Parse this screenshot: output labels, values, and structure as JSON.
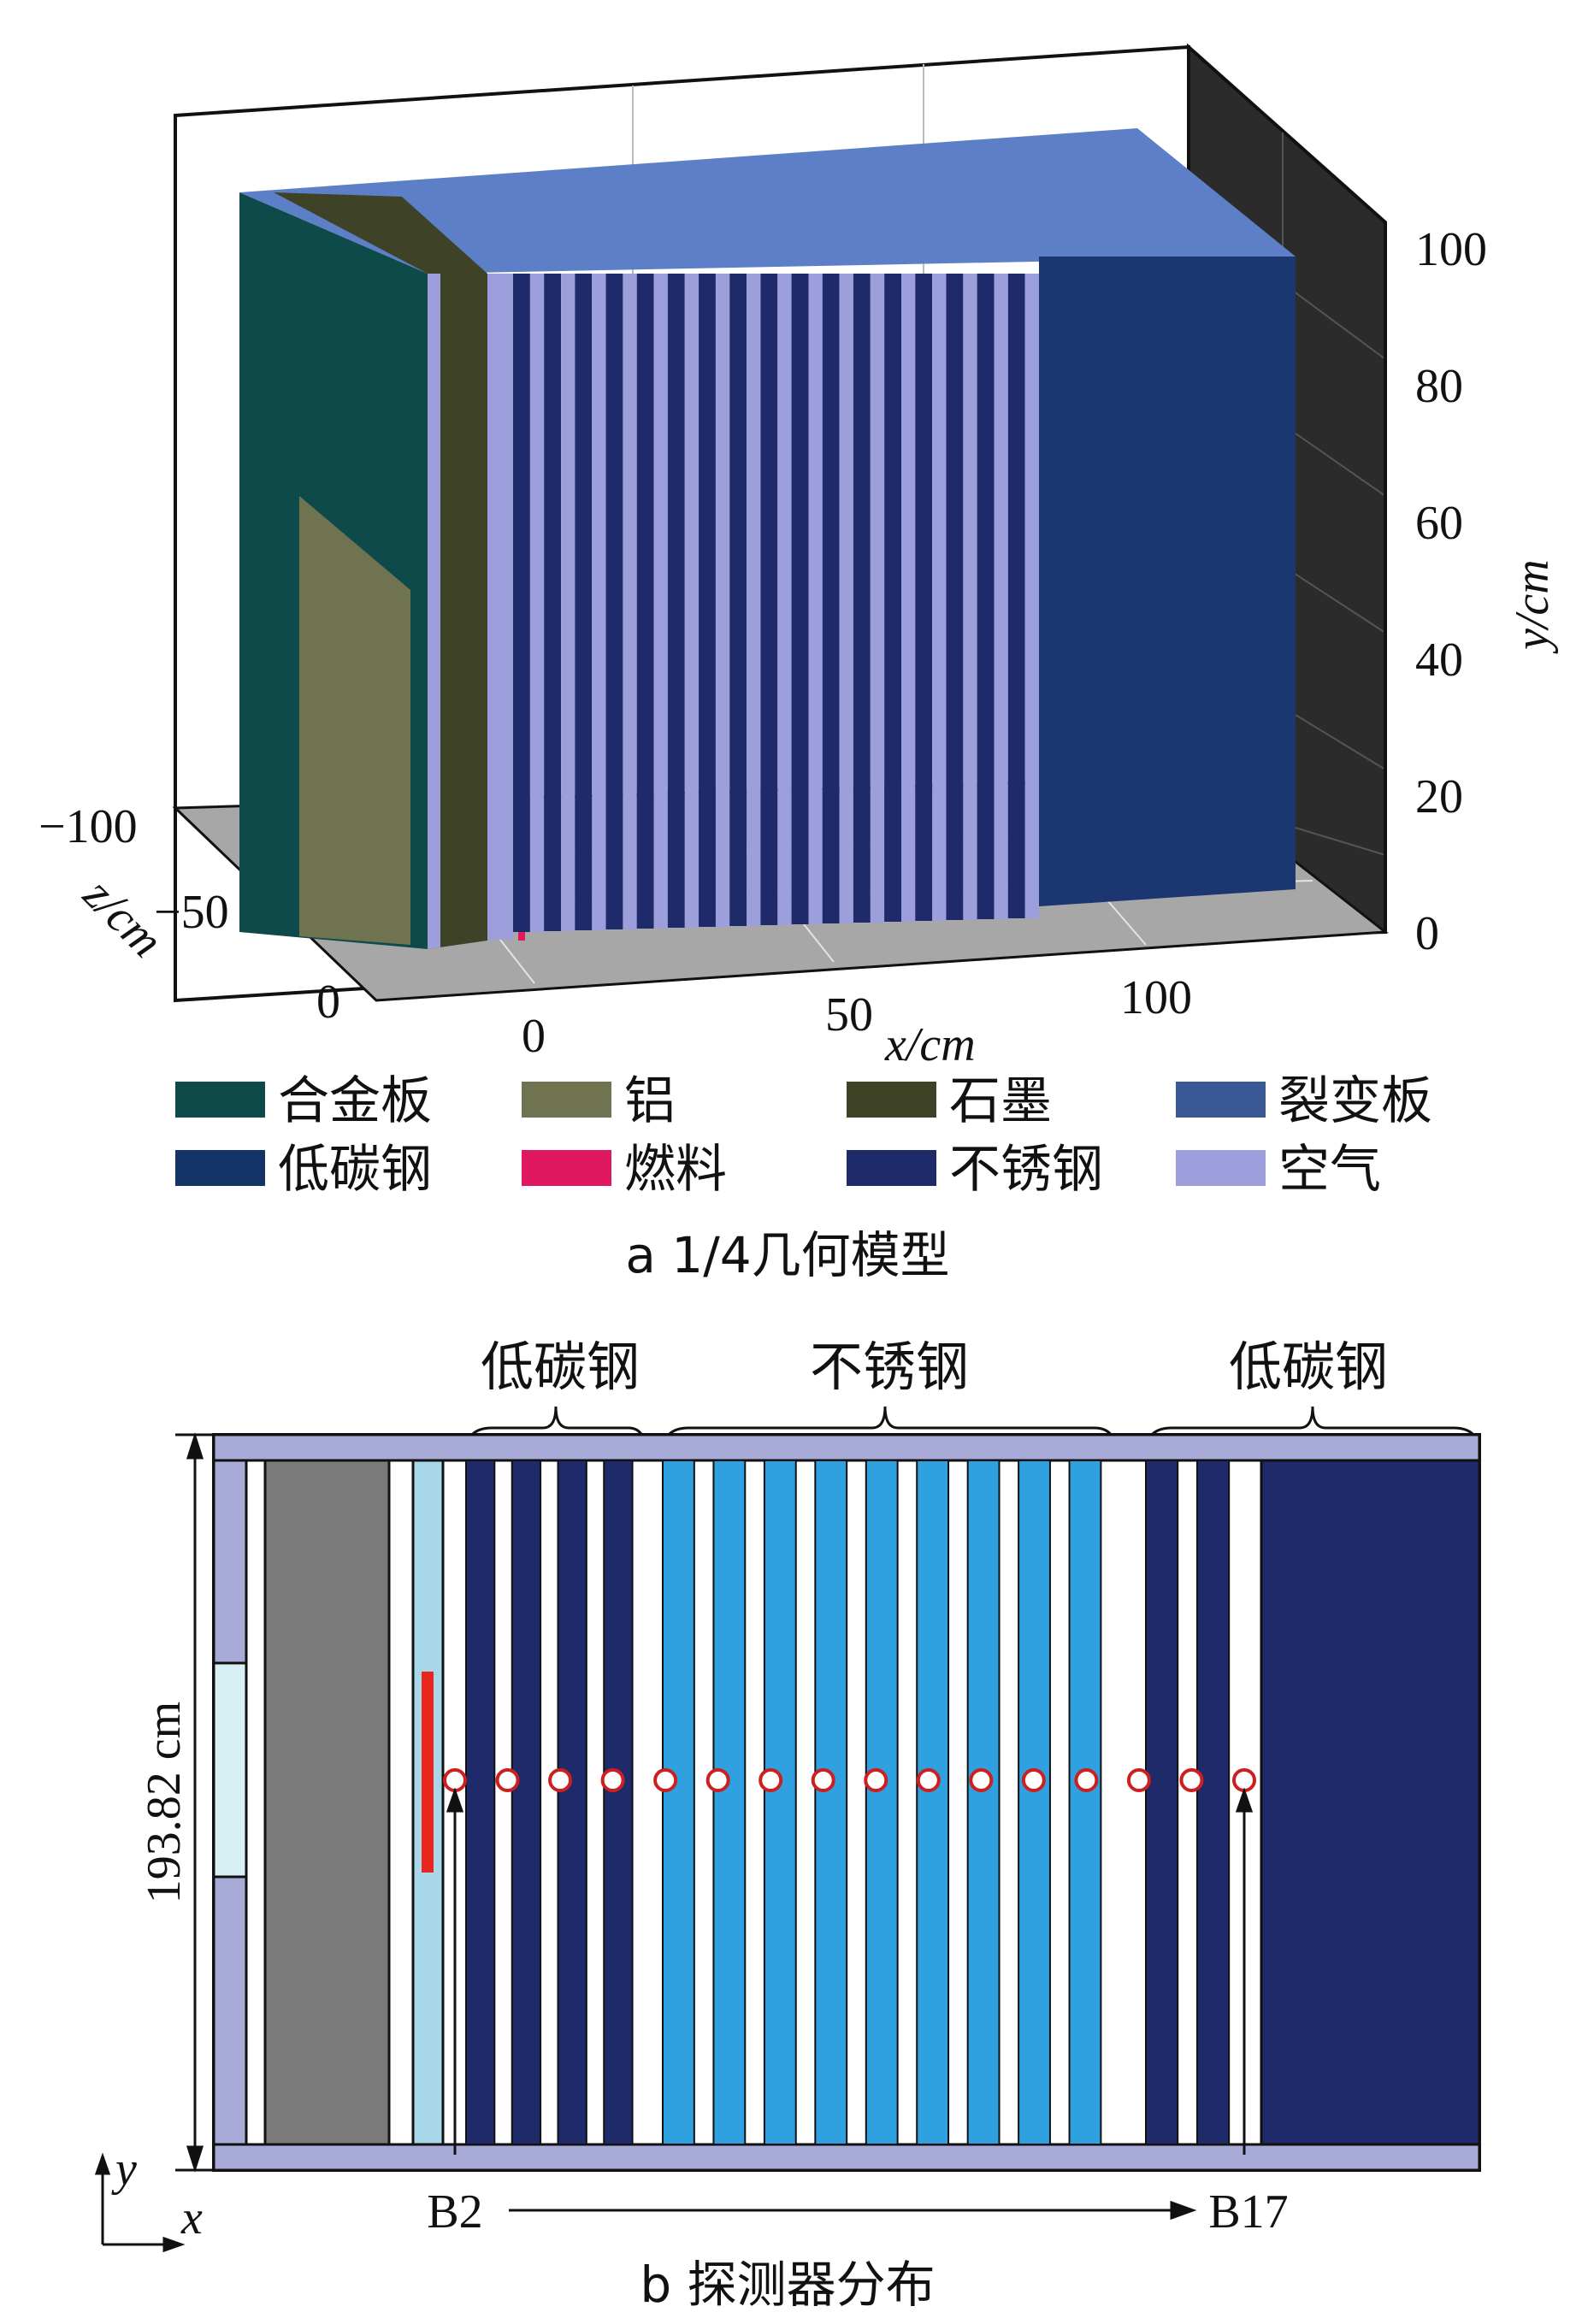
{
  "panel_a": {
    "caption": "a 1/4几何模型",
    "axes": {
      "x_label": "x/cm",
      "y_label": "y/cm",
      "z_label": "z/cm",
      "x_ticks": [
        "0",
        "50",
        "100"
      ],
      "y_ticks": [
        "0",
        "20",
        "40",
        "60",
        "80",
        "100"
      ],
      "z_ticks": [
        "−100",
        "−50",
        "0"
      ]
    },
    "legend": [
      {
        "label": "合金板",
        "color": "#0f4a4a"
      },
      {
        "label": "铝",
        "color": "#6f7350"
      },
      {
        "label": "石墨",
        "color": "#3e4328"
      },
      {
        "label": "裂变板",
        "color": "#3a5893"
      },
      {
        "label": "低碳钢",
        "color": "#143468"
      },
      {
        "label": "燃料",
        "color": "#e0185f"
      },
      {
        "label": "不锈钢",
        "color": "#1f2a6a"
      },
      {
        "label": "空气",
        "color": "#9c9fdc"
      }
    ]
  },
  "panel_b": {
    "caption": "b 探测器分布",
    "group_labels": [
      "低碳钢",
      "不锈钢",
      "低碳钢"
    ],
    "height_label": "193.82 cm",
    "detector_start": "B2",
    "detector_end": "B17",
    "axis_y": "y",
    "axis_x": "x",
    "detector_count": 16,
    "colors": {
      "low_carbon_steel": "#1f2a6a",
      "stainless_steel": "#2fa0e0",
      "graphite": "#7a7a7a",
      "alloy": "#a8aad8",
      "light_blue": "#a9d7ea",
      "fuel": "#e8261e",
      "detector": "#cc1f1f"
    }
  }
}
